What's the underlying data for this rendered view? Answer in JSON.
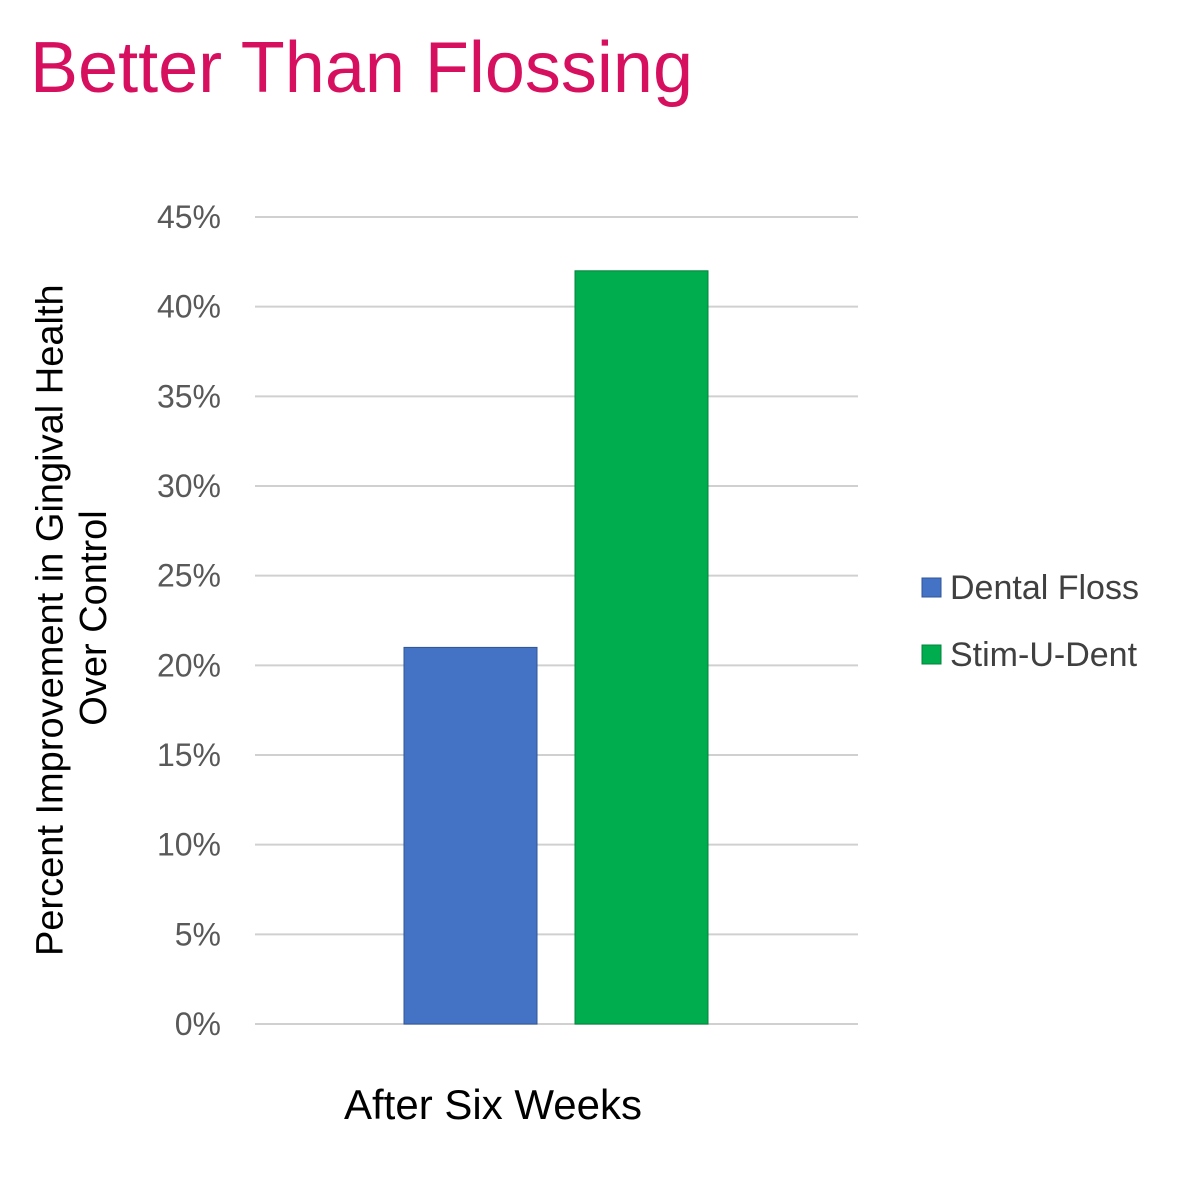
{
  "colors": {
    "title": "#d6105f",
    "series": [
      "#4472c4",
      "#00ad4e"
    ],
    "bar_border": [
      "#2f5597",
      "#00843a"
    ],
    "grid": "#d0d0d0"
  },
  "chart_data": {
    "type": "bar",
    "title": "Better Than Flossing",
    "categories": [
      "After Six Weeks"
    ],
    "series": [
      {
        "name": "Dental Floss",
        "values": [
          21
        ]
      },
      {
        "name": "Stim-U-Dent",
        "values": [
          42
        ]
      }
    ],
    "xlabel": "After Six Weeks",
    "ylabel": [
      "Percent Improvement in Gingival Health",
      "Over Control"
    ],
    "ylim": [
      0,
      45
    ],
    "yticks": [
      "0%",
      "5%",
      "10%",
      "15%",
      "20%",
      "25%",
      "30%",
      "35%",
      "40%",
      "45%"
    ],
    "grid": true,
    "legend": "right"
  }
}
